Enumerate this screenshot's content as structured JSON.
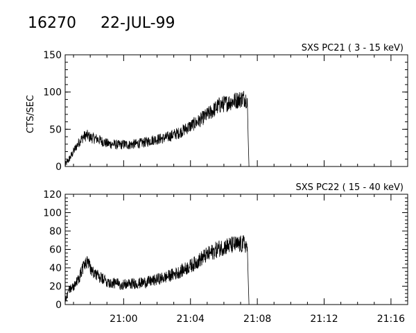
{
  "header": {
    "id": "16270",
    "date": "22-JUL-99"
  },
  "chart_data": [
    {
      "type": "line",
      "title": "SXS PC21  (  3 - 15 keV)",
      "ylabel": "CTS/SEC",
      "ylim": [
        0,
        150
      ],
      "yticks": [
        0,
        50,
        100,
        150
      ],
      "xlim_minutes": [
        -3.5,
        17.0
      ],
      "series": [
        {
          "x": [
            -3.5,
            -3.2,
            -3.0,
            -2.8,
            -2.6,
            -2.4,
            -2.2,
            -2.0,
            -1.8,
            -1.6,
            -1.4,
            -1.2,
            -1.0,
            -0.8,
            -0.6,
            -0.4,
            -0.2,
            0.0,
            0.3,
            0.6,
            0.9,
            1.2,
            1.5,
            1.8,
            2.1,
            2.4,
            2.7,
            3.0,
            3.3,
            3.6,
            3.9,
            4.2,
            4.5,
            4.8,
            5.1,
            5.4,
            5.7,
            6.0,
            6.3,
            6.6,
            6.9,
            7.2,
            7.3,
            7.4,
            7.45,
            7.5
          ],
          "values": [
            2,
            12,
            20,
            28,
            35,
            40,
            42,
            39,
            38,
            37,
            35,
            33,
            31,
            30,
            30,
            29,
            29,
            30,
            29,
            30,
            31,
            32,
            34,
            36,
            37,
            38,
            40,
            43,
            45,
            49,
            53,
            57,
            61,
            66,
            71,
            76,
            82,
            84,
            86,
            88,
            90,
            92,
            91,
            90,
            40,
            0
          ]
        }
      ]
    },
    {
      "type": "line",
      "title": "SXS PC22  ( 15 - 40 keV)",
      "ylabel": "",
      "ylim": [
        0,
        120
      ],
      "yticks": [
        0,
        20,
        40,
        60,
        80,
        100,
        120
      ],
      "xlim_minutes": [
        -3.5,
        17.0
      ],
      "xtick_labels": [
        "21:00",
        "21:04",
        "21:08",
        "21:12",
        "21:16"
      ],
      "series": [
        {
          "x": [
            -3.5,
            -3.3,
            -3.0,
            -2.8,
            -2.6,
            -2.4,
            -2.2,
            -2.0,
            -1.8,
            -1.6,
            -1.4,
            -1.2,
            -1.0,
            -0.8,
            -0.6,
            -0.4,
            -0.2,
            0.0,
            0.3,
            0.6,
            0.9,
            1.2,
            1.5,
            1.8,
            2.1,
            2.4,
            2.7,
            3.0,
            3.3,
            3.6,
            3.9,
            4.2,
            4.5,
            4.8,
            5.1,
            5.4,
            5.7,
            6.0,
            6.3,
            6.6,
            6.9,
            7.2,
            7.3,
            7.4,
            7.45,
            7.5
          ],
          "values": [
            4,
            16,
            20,
            24,
            33,
            42,
            46,
            40,
            36,
            32,
            29,
            27,
            25,
            24,
            23,
            23,
            22,
            22,
            22,
            23,
            23,
            24,
            25,
            26,
            28,
            29,
            31,
            33,
            35,
            38,
            41,
            44,
            48,
            52,
            55,
            58,
            61,
            63,
            64,
            65,
            65,
            66,
            65,
            63,
            30,
            0
          ]
        }
      ]
    }
  ]
}
